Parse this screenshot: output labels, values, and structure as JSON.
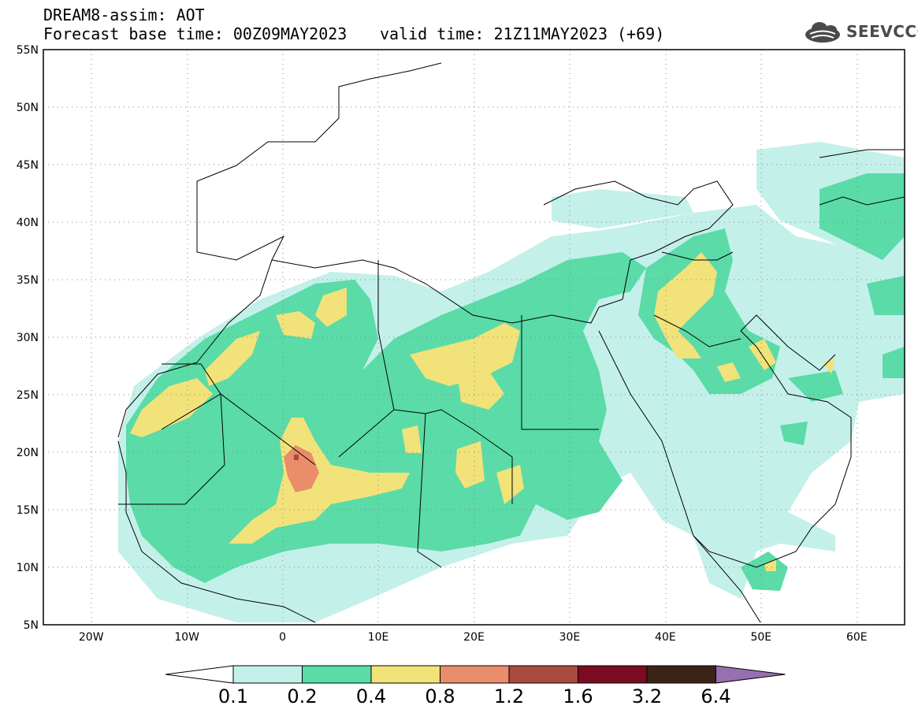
{
  "header": {
    "title_line1": "DREAM8-assim: AOT",
    "title_line2": "Forecast base time: 00Z09MAY2023",
    "title_line3": "valid time: 21Z11MAY2023 (+69)"
  },
  "logo": {
    "text": "SEEVCCC",
    "icon": "cloud-logo-icon"
  },
  "map": {
    "extent": {
      "lon": [
        -25,
        65
      ],
      "lat": [
        5,
        55
      ]
    },
    "lat_ticks": [
      "5N",
      "10N",
      "15N",
      "20N",
      "25N",
      "30N",
      "35N",
      "40N",
      "45N",
      "50N",
      "55N"
    ],
    "lon_ticks": [
      "20W",
      "10W",
      "0",
      "10E",
      "20E",
      "30E",
      "40E",
      "50E",
      "60E"
    ],
    "gridlines": "dotted"
  },
  "colorbar": {
    "labels": [
      "0.1",
      "0.2",
      "0.4",
      "0.8",
      "1.2",
      "1.6",
      "3.2",
      "6.4"
    ],
    "colors": [
      "#ffffff",
      "#c4f0ea",
      "#5adba8",
      "#f2e27a",
      "#e98d6a",
      "#a94a3e",
      "#7a0b22",
      "#3b2417",
      "#9670b0"
    ]
  }
}
